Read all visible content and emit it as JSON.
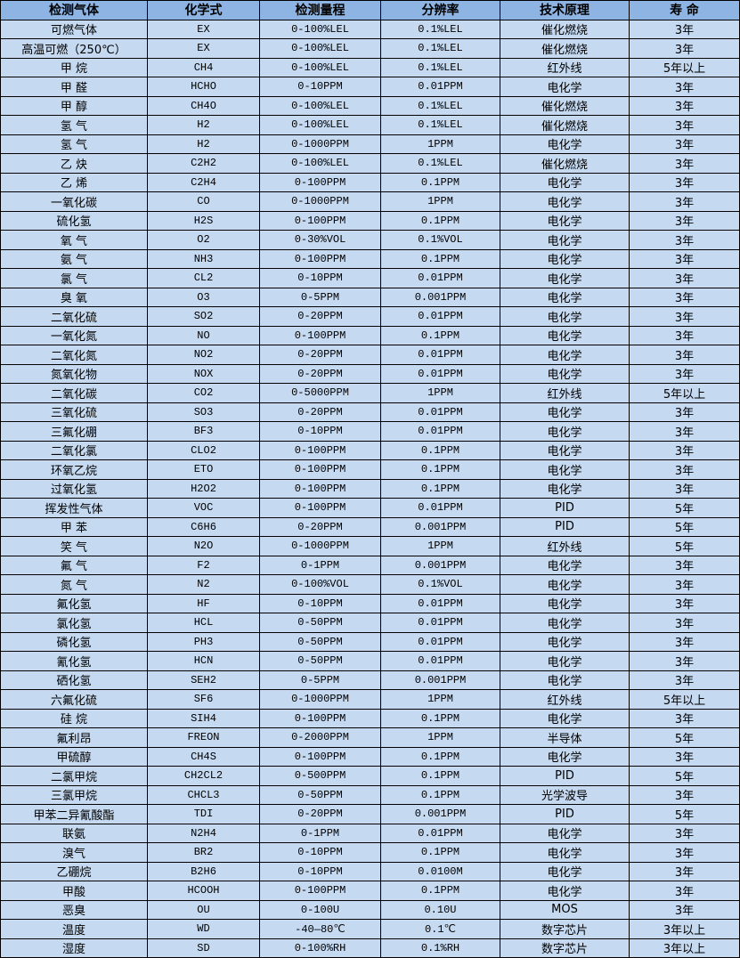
{
  "colors": {
    "header_bg": "#8db4e2",
    "row_bg": "#c5d9f1"
  },
  "headers": [
    "检测气体",
    "化学式",
    "检测量程",
    "分辨率",
    "技术原理",
    "寿 命"
  ],
  "rows": [
    [
      "可燃气体",
      "EX",
      "0-100%LEL",
      "0.1%LEL",
      "催化燃烧",
      "3年"
    ],
    [
      "高温可燃（250℃）",
      "EX",
      "0-100%LEL",
      "0.1%LEL",
      "催化燃烧",
      "3年"
    ],
    [
      "甲 烷",
      "CH4",
      "0-100%LEL",
      "0.1%LEL",
      "红外线",
      "5年以上"
    ],
    [
      "甲 醛",
      "HCHO",
      "0-10PPM",
      "0.01PPM",
      "电化学",
      "3年"
    ],
    [
      "甲 醇",
      "CH4O",
      "0-100%LEL",
      "0.1%LEL",
      "催化燃烧",
      "3年"
    ],
    [
      "氢 气",
      "H2",
      "0-100%LEL",
      "0.1%LEL",
      "催化燃烧",
      "3年"
    ],
    [
      "氢 气",
      "H2",
      "0-1000PPM",
      "1PPM",
      "电化学",
      "3年"
    ],
    [
      "乙 炔",
      "C2H2",
      "0-100%LEL",
      "0.1%LEL",
      "催化燃烧",
      "3年"
    ],
    [
      "乙 烯",
      "C2H4",
      "0-100PPM",
      "0.1PPM",
      "电化学",
      "3年"
    ],
    [
      "一氧化碳",
      "CO",
      "0-1000PPM",
      "1PPM",
      "电化学",
      "3年"
    ],
    [
      "硫化氢",
      "H2S",
      "0-100PPM",
      "0.1PPM",
      "电化学",
      "3年"
    ],
    [
      "氧 气",
      "O2",
      "0-30%VOL",
      "0.1%VOL",
      "电化学",
      "3年"
    ],
    [
      "氨 气",
      "NH3",
      "0-100PPM",
      "0.1PPM",
      "电化学",
      "3年"
    ],
    [
      "氯 气",
      "CL2",
      "0-10PPM",
      "0.01PPM",
      "电化学",
      "3年"
    ],
    [
      "臭 氧",
      "O3",
      "0-5PPM",
      "0.001PPM",
      "电化学",
      "3年"
    ],
    [
      "二氧化硫",
      "SO2",
      "0-20PPM",
      "0.01PPM",
      "电化学",
      "3年"
    ],
    [
      "一氧化氮",
      "NO",
      "0-100PPM",
      "0.1PPM",
      "电化学",
      "3年"
    ],
    [
      "二氧化氮",
      "NO2",
      "0-20PPM",
      "0.01PPM",
      "电化学",
      "3年"
    ],
    [
      "氮氧化物",
      "NOX",
      "0-20PPM",
      "0.01PPM",
      "电化学",
      "3年"
    ],
    [
      "二氧化碳",
      "CO2",
      "0-5000PPM",
      "1PPM",
      "红外线",
      "5年以上"
    ],
    [
      "三氧化硫",
      "SO3",
      "0-20PPM",
      "0.01PPM",
      "电化学",
      "3年"
    ],
    [
      "三氟化硼",
      "BF3",
      "0-10PPM",
      "0.01PPM",
      "电化学",
      "3年"
    ],
    [
      "二氧化氯",
      "CLO2",
      "0-100PPM",
      "0.1PPM",
      "电化学",
      "3年"
    ],
    [
      "环氧乙烷",
      "ETO",
      "0-100PPM",
      "0.1PPM",
      "电化学",
      "3年"
    ],
    [
      "过氧化氢",
      "H2O2",
      "0-100PPM",
      "0.1PPM",
      "电化学",
      "3年"
    ],
    [
      "挥发性气体",
      "VOC",
      "0-100PPM",
      "0.01PPM",
      "PID",
      "5年"
    ],
    [
      "甲 苯",
      "C6H6",
      "0-20PPM",
      "0.001PPM",
      "PID",
      "5年"
    ],
    [
      "笑 气",
      "N2O",
      "0-1000PPM",
      "1PPM",
      "红外线",
      "5年"
    ],
    [
      "氟 气",
      "F2",
      "0-1PPM",
      "0.001PPM",
      "电化学",
      "3年"
    ],
    [
      "氮 气",
      "N2",
      "0-100%VOL",
      "0.1%VOL",
      "电化学",
      "3年"
    ],
    [
      "氟化氢",
      "HF",
      "0-10PPM",
      "0.01PPM",
      "电化学",
      "3年"
    ],
    [
      "氯化氢",
      "HCL",
      "0-50PPM",
      "0.01PPM",
      "电化学",
      "3年"
    ],
    [
      "磷化氢",
      "PH3",
      "0-50PPM",
      "0.01PPM",
      "电化学",
      "3年"
    ],
    [
      "氰化氢",
      "HCN",
      "0-50PPM",
      "0.01PPM",
      "电化学",
      "3年"
    ],
    [
      "硒化氢",
      "SEH2",
      "0-5PPM",
      "0.001PPM",
      "电化学",
      "3年"
    ],
    [
      "六氟化硫",
      "SF6",
      "0-1000PPM",
      "1PPM",
      "红外线",
      "5年以上"
    ],
    [
      "硅 烷",
      "SIH4",
      "0-100PPM",
      "0.1PPM",
      "电化学",
      "3年"
    ],
    [
      "氟利昂",
      "FREON",
      "0-2000PPM",
      "1PPM",
      "半导体",
      "5年"
    ],
    [
      "甲硫醇",
      "CH4S",
      "0-100PPM",
      "0.1PPM",
      "电化学",
      "3年"
    ],
    [
      "二氯甲烷",
      "CH2CL2",
      "0-500PPM",
      "0.1PPM",
      "PID",
      "5年"
    ],
    [
      "三氯甲烷",
      "CHCL3",
      "0-50PPM",
      "0.1PPM",
      "光学波导",
      "3年"
    ],
    [
      "甲苯二异氰酸酯",
      "TDI",
      "0-20PPM",
      "0.001PPM",
      "PID",
      "5年"
    ],
    [
      "联氨",
      "N2H4",
      "0-1PPM",
      "0.01PPM",
      "电化学",
      "3年"
    ],
    [
      "溴气",
      "BR2",
      "0-10PPM",
      "0.1PPM",
      "电化学",
      "3年"
    ],
    [
      "乙硼烷",
      "B2H6",
      "0-10PPM",
      "0.0100M",
      "电化学",
      "3年"
    ],
    [
      "甲酸",
      "HCOOH",
      "0-100PPM",
      "0.1PPM",
      "电化学",
      "3年"
    ],
    [
      "恶臭",
      "OU",
      "0-100U",
      "0.10U",
      "MOS",
      "3年"
    ],
    [
      "温度",
      "WD",
      "-40—80℃",
      "0.1℃",
      "数字芯片",
      "3年以上"
    ],
    [
      "湿度",
      "SD",
      "0-100%RH",
      "0.1%RH",
      "数字芯片",
      "3年以上"
    ]
  ]
}
